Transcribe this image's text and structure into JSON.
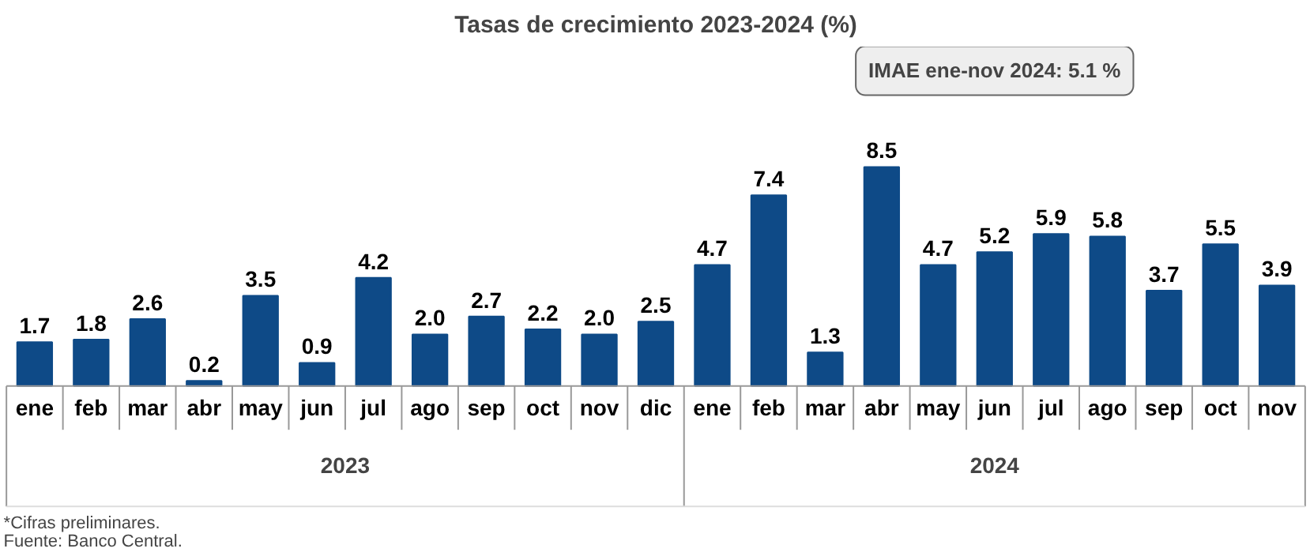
{
  "chart_data": {
    "type": "bar",
    "title": "Tasas de crecimiento 2023-2024 (%)",
    "categories": [
      "ene",
      "feb",
      "mar",
      "abr",
      "may",
      "jun",
      "jul",
      "ago",
      "sep",
      "oct",
      "nov",
      "dic",
      "ene",
      "feb",
      "mar",
      "abr",
      "may",
      "jun",
      "jul",
      "ago",
      "sep",
      "oct",
      "nov"
    ],
    "values": [
      1.7,
      1.8,
      2.6,
      0.2,
      3.5,
      0.9,
      4.2,
      2.0,
      2.7,
      2.2,
      2.0,
      2.5,
      4.7,
      7.4,
      1.3,
      8.5,
      4.7,
      5.2,
      5.9,
      5.8,
      3.7,
      5.5,
      3.9
    ],
    "value_labels": [
      "1.7",
      "1.8",
      "2.6",
      "0.2",
      "3.5",
      "0.9",
      "4.2",
      "2.0",
      "2.7",
      "2.2",
      "2.0",
      "2.5",
      "4.7",
      "7.4",
      "1.3",
      "8.5",
      "4.7",
      "5.2",
      "5.9",
      "5.8",
      "3.7",
      "5.5",
      "3.9"
    ],
    "color": "#0e4a87",
    "grid": false,
    "annotations": [
      "IMAE ene-nov 2024: 5.1 %",
      "2023",
      "2024",
      "*Cifras preliminares.",
      "Fuente: Banco Central."
    ]
  }
}
